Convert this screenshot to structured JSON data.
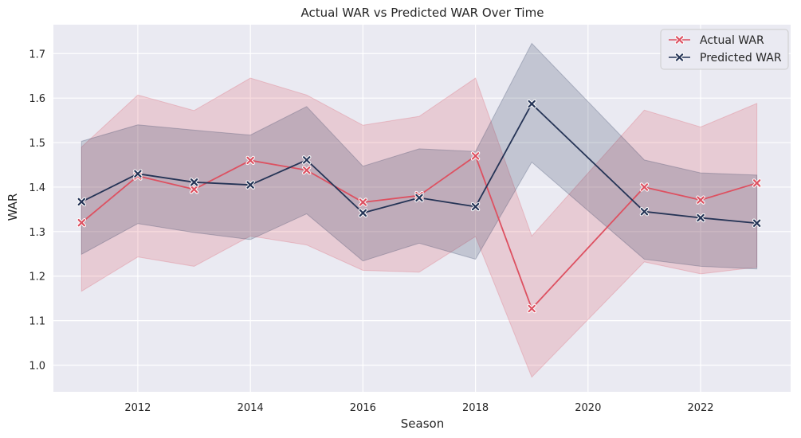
{
  "chart_data": {
    "type": "line",
    "title": "Actual WAR vs Predicted WAR Over Time",
    "xlabel": "Season",
    "ylabel": "WAR",
    "xlim": [
      2010.5,
      2023.6
    ],
    "ylim": [
      0.94,
      1.765
    ],
    "xticks": [
      2012,
      2014,
      2016,
      2018,
      2020,
      2022
    ],
    "xtick_labels": [
      "2012",
      "2014",
      "2016",
      "2018",
      "2020",
      "2022"
    ],
    "yticks": [
      1.0,
      1.1,
      1.2,
      1.3,
      1.4,
      1.5,
      1.6,
      1.7
    ],
    "ytick_labels": [
      "1.0",
      "1.1",
      "1.2",
      "1.3",
      "1.4",
      "1.5",
      "1.6",
      "1.7"
    ],
    "grid": true,
    "legend_position": "top-right",
    "x": [
      2011,
      2012,
      2013,
      2014,
      2015,
      2016,
      2017,
      2018,
      2019,
      2021,
      2022,
      2023
    ],
    "series": [
      {
        "name": "Actual WAR",
        "color": "#dd5161",
        "marker": "x",
        "values": [
          1.32,
          1.425,
          1.395,
          1.46,
          1.438,
          1.366,
          1.381,
          1.47,
          1.127,
          1.4,
          1.371,
          1.409
        ],
        "ci_lower": [
          1.166,
          1.243,
          1.222,
          1.29,
          1.27,
          1.213,
          1.209,
          1.289,
          0.973,
          1.232,
          1.205,
          1.22
        ],
        "ci_upper": [
          1.49,
          1.607,
          1.572,
          1.645,
          1.607,
          1.539,
          1.559,
          1.645,
          1.29,
          1.573,
          1.535,
          1.588
        ]
      },
      {
        "name": "Predicted WAR",
        "color": "#253456",
        "marker": "x",
        "values": [
          1.367,
          1.43,
          1.411,
          1.405,
          1.461,
          1.342,
          1.376,
          1.356,
          1.587,
          1.345,
          1.331,
          1.319
        ],
        "ci_lower": [
          1.249,
          1.318,
          1.298,
          1.282,
          1.34,
          1.234,
          1.274,
          1.238,
          1.456,
          1.238,
          1.222,
          1.216
        ],
        "ci_upper": [
          1.503,
          1.54,
          1.528,
          1.517,
          1.581,
          1.447,
          1.486,
          1.48,
          1.723,
          1.461,
          1.432,
          1.427
        ]
      }
    ]
  }
}
